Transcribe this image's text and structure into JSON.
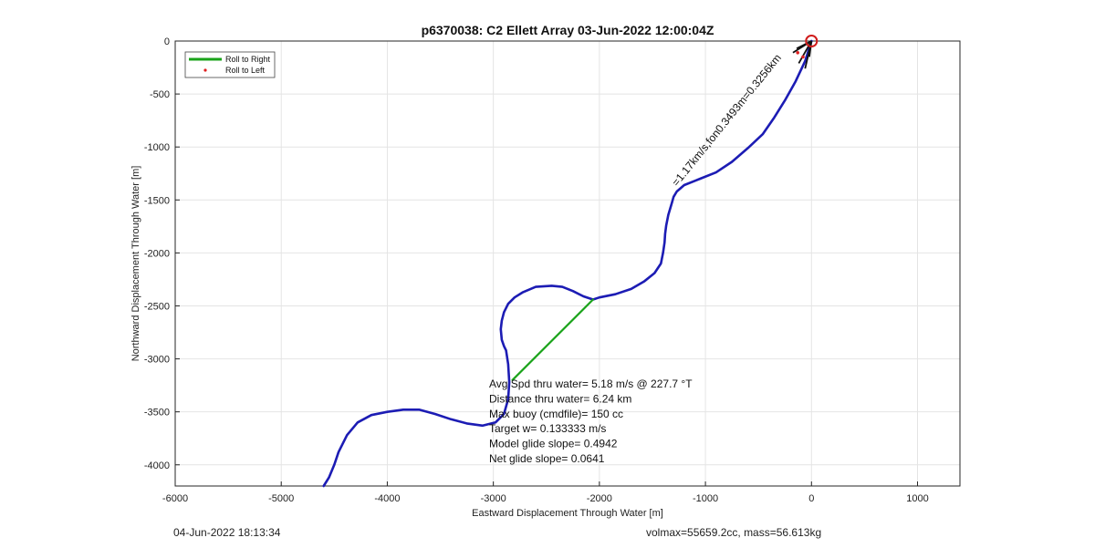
{
  "chart_data": {
    "type": "line",
    "title": "p6370038: C2 Ellett Array 03-Jun-2022 12:00:04Z",
    "xlabel": "Eastward Displacement Through Water [m]",
    "ylabel": "Northward Displacement Through Water [m]",
    "xlim": [
      -6000,
      1400
    ],
    "ylim": [
      -4200,
      0
    ],
    "xticks": [
      -6000,
      -5000,
      -4000,
      -3000,
      -2000,
      -1000,
      0,
      1000
    ],
    "yticks": [
      0,
      -500,
      -1000,
      -1500,
      -2000,
      -2500,
      -3000,
      -3500,
      -4000
    ],
    "grid": true,
    "legend": {
      "placement": "top-left",
      "entries": [
        {
          "label": "Roll to Right",
          "color": "#1aa31a",
          "marker": "line"
        },
        {
          "label": "Roll to Left",
          "color": "#e02020",
          "marker": "dot"
        }
      ]
    },
    "series": [
      {
        "color": "#1c1cb4",
        "x": [
          -4600,
          -4550,
          -4500,
          -4460,
          -4380,
          -4280,
          -4150,
          -4000,
          -3850,
          -3700,
          -3550,
          -3400,
          -3250,
          -3100,
          -2980,
          -2900,
          -2860,
          -2850,
          -2860,
          -2880,
          -2900,
          -2920,
          -2930,
          -2920,
          -2900,
          -2860,
          -2800,
          -2720,
          -2600,
          -2450,
          -2350,
          -2250,
          -2150,
          -2060,
          -2000,
          -1850,
          -1700,
          -1580,
          -1480,
          -1420,
          -1400,
          -1385,
          -1380,
          -1370,
          -1350,
          -1320,
          -1300,
          -1270,
          -1200,
          -1050,
          -900,
          -750,
          -600,
          -460,
          -350,
          -250,
          -150,
          -60,
          0
        ],
        "y": [
          -4200,
          -4120,
          -4000,
          -3880,
          -3720,
          -3600,
          -3530,
          -3500,
          -3480,
          -3480,
          -3520,
          -3570,
          -3610,
          -3630,
          -3600,
          -3520,
          -3380,
          -3220,
          -3050,
          -2920,
          -2880,
          -2820,
          -2720,
          -2640,
          -2560,
          -2480,
          -2420,
          -2370,
          -2320,
          -2310,
          -2320,
          -2360,
          -2410,
          -2440,
          -2420,
          -2390,
          -2340,
          -2270,
          -2190,
          -2100,
          -2000,
          -1900,
          -1820,
          -1740,
          -1640,
          -1540,
          -1470,
          -1420,
          -1360,
          -1300,
          -1240,
          -1140,
          -1010,
          -880,
          -720,
          -560,
          -380,
          -190,
          0
        ]
      },
      {
        "name": "Roll to Right",
        "color": "#1aa31a",
        "x": [
          -2060,
          -2820
        ],
        "y": [
          -2440,
          -3200
        ]
      }
    ],
    "annotations": {
      "path_label": "=1.17km/s,fon0.3493m=0.3256km",
      "stats": [
        "Avg Spd thru water=  5.18 m/s @ 227.7 °T",
        "Distance thru water=  6.24 km",
        "Max buoy (cmdfile)= 150 cc",
        "Target w= 0.133333 m/s",
        "Model glide slope= 0.4942",
        "Net glide slope= 0.0641"
      ]
    }
  },
  "footer": {
    "date": "04-Jun-2022 18:13:34",
    "volume_mass": "volmax=55659.2cc, mass=56.613kg"
  }
}
